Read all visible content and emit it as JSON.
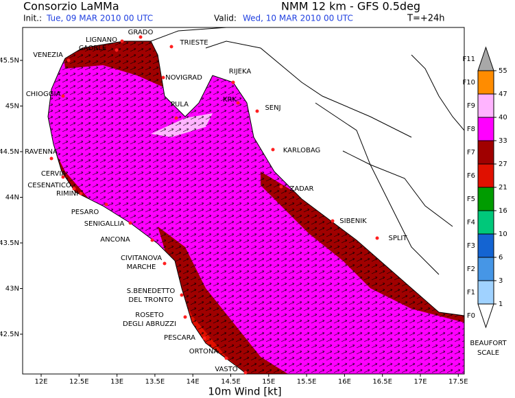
{
  "header": {
    "title": "Consorzio LaMMa",
    "model": "NMM 12 km  -  GFS 0.5deg",
    "init_label": "Init.:",
    "init": "Tue, 09 MAR 2010   00 UTC",
    "valid_label": "Valid:",
    "valid": "Wed, 10 MAR 2010   00 UTC",
    "lead": "T=+24h"
  },
  "map": {
    "lon_ticks": [
      "12E",
      "12.5E",
      "13E",
      "13.5E",
      "14E",
      "14.5E",
      "15E",
      "15.5E",
      "16E",
      "16.5E",
      "17E",
      "17.5E"
    ],
    "lat_ticks": [
      "45.5N",
      "45N",
      "44.5N",
      "44N",
      "43.5N",
      "43N",
      "42.5N"
    ],
    "x_label": "10m Wind [kt]",
    "places": [
      [
        "GRADO"
      ],
      [
        "LIGNANO"
      ],
      [
        "CAORLE"
      ],
      [
        "TRIESTE"
      ],
      [
        "VENEZIA"
      ],
      [
        "RIJEKA"
      ],
      [
        "NOVIGRAD"
      ],
      [
        "CHIOGGIA"
      ],
      [
        "KRK"
      ],
      [
        "PULA"
      ],
      [
        "SENJ"
      ],
      [
        "RAVENNA"
      ],
      [
        "KARLOBAG"
      ],
      [
        "CERVIA"
      ],
      [
        "CESENATICO"
      ],
      [
        "ZADAR"
      ],
      [
        "RIMINI"
      ],
      [
        "PESARO"
      ],
      [
        "SIBENIK"
      ],
      [
        "SENIGALLIA"
      ],
      [
        "SPLIT"
      ],
      [
        "ANCONA"
      ],
      [
        "CIVITANOVA",
        "MARCHE"
      ],
      [
        "S.BENEDETTO",
        "DEL TRONTO"
      ],
      [
        "ROSETO",
        "DEGLI ABRUZZI"
      ],
      [
        "PESCARA"
      ],
      [
        "ORTONA"
      ],
      [
        "VASTO"
      ]
    ]
  },
  "colorbar": {
    "values": [
      55,
      47,
      40,
      33,
      27,
      21,
      16,
      10,
      6,
      3,
      1
    ],
    "forces": [
      "F11",
      "F10",
      "F9",
      "F8",
      "F7",
      "F6",
      "F5",
      "F4",
      "F3",
      "F2",
      "F1",
      "F0"
    ],
    "colors": [
      "#a8a8a8",
      "#ff8c00",
      "#ffb4ff",
      "#ff00ff",
      "#a00000",
      "#e01000",
      "#009c00",
      "#00c87a",
      "#1464d2",
      "#4696e6",
      "#a0d2ff",
      "#ffffff"
    ],
    "scale_label": [
      "BEAUFORT",
      "SCALE"
    ]
  }
}
